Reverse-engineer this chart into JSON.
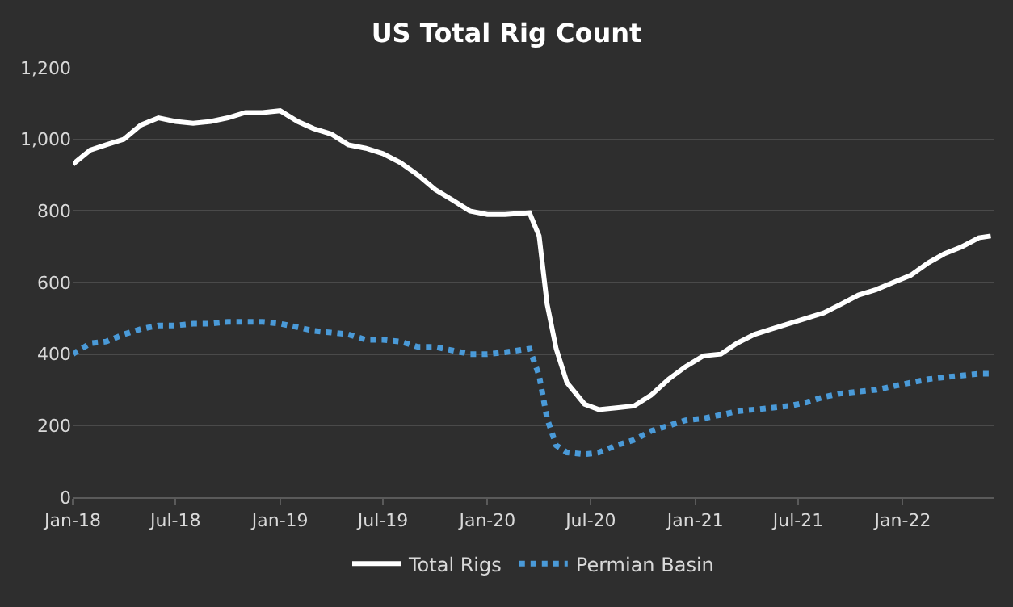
{
  "chart_data": {
    "type": "line",
    "title": "US Total Rig Count",
    "x": [
      "2018-01-01",
      "2018-02-01",
      "2018-03-01",
      "2018-04-01",
      "2018-05-01",
      "2018-06-01",
      "2018-07-01",
      "2018-08-01",
      "2018-09-01",
      "2018-10-01",
      "2018-11-01",
      "2018-12-01",
      "2019-01-01",
      "2019-02-01",
      "2019-03-01",
      "2019-04-01",
      "2019-05-01",
      "2019-06-01",
      "2019-07-01",
      "2019-08-01",
      "2019-09-01",
      "2019-10-01",
      "2019-11-01",
      "2019-12-01",
      "2020-01-01",
      "2020-02-01",
      "2020-03-15",
      "2020-04-01",
      "2020-04-15",
      "2020-05-01",
      "2020-05-20",
      "2020-06-20",
      "2020-07-15",
      "2020-08-15",
      "2020-09-15",
      "2020-10-15",
      "2020-11-15",
      "2020-12-15",
      "2021-01-15",
      "2021-02-15",
      "2021-03-15",
      "2021-04-15",
      "2021-05-15",
      "2021-06-15",
      "2021-07-15",
      "2021-08-15",
      "2021-09-15",
      "2021-10-15",
      "2021-11-15",
      "2021-12-15",
      "2022-01-15",
      "2022-02-15",
      "2022-03-15",
      "2022-04-15",
      "2022-05-15",
      "2022-06-05"
    ],
    "series": [
      {
        "name": "Total Rigs",
        "color": "#ffffff",
        "line_style": "solid",
        "values": [
          930,
          970,
          985,
          1000,
          1040,
          1060,
          1050,
          1045,
          1050,
          1060,
          1075,
          1075,
          1080,
          1050,
          1030,
          1015,
          985,
          975,
          960,
          935,
          900,
          860,
          830,
          800,
          790,
          790,
          795,
          730,
          540,
          415,
          320,
          260,
          245,
          250,
          255,
          285,
          330,
          365,
          395,
          400,
          430,
          455,
          470,
          485,
          500,
          515,
          540,
          565,
          580,
          600,
          620,
          655,
          680,
          700,
          725,
          730
        ]
      },
      {
        "name": "Permian Basin",
        "color": "#4a9ad8",
        "line_style": "dotted",
        "values": [
          400,
          430,
          435,
          455,
          470,
          480,
          480,
          485,
          485,
          490,
          490,
          490,
          485,
          475,
          465,
          460,
          455,
          440,
          440,
          435,
          420,
          420,
          410,
          400,
          400,
          405,
          415,
          340,
          220,
          145,
          125,
          120,
          125,
          145,
          160,
          185,
          200,
          215,
          220,
          230,
          240,
          245,
          250,
          255,
          265,
          280,
          290,
          295,
          300,
          310,
          320,
          330,
          335,
          340,
          345,
          345
        ]
      }
    ],
    "xlim": [
      "2018-01-01",
      "2022-06-10"
    ],
    "xticks": [
      {
        "value": "2018-01-01",
        "label": "Jan-18"
      },
      {
        "value": "2018-07-01",
        "label": "Jul-18"
      },
      {
        "value": "2019-01-01",
        "label": "Jan-19"
      },
      {
        "value": "2019-07-01",
        "label": "Jul-19"
      },
      {
        "value": "2020-01-01",
        "label": "Jan-20"
      },
      {
        "value": "2020-07-01",
        "label": "Jul-20"
      },
      {
        "value": "2021-01-01",
        "label": "Jan-21"
      },
      {
        "value": "2021-07-01",
        "label": "Jul-21"
      },
      {
        "value": "2022-01-01",
        "label": "Jan-22"
      }
    ],
    "ylim": [
      0,
      1200
    ],
    "yticks": [
      {
        "value": 0,
        "label": "0"
      },
      {
        "value": 200,
        "label": "200"
      },
      {
        "value": 400,
        "label": "400"
      },
      {
        "value": 600,
        "label": "600"
      },
      {
        "value": 800,
        "label": "800"
      },
      {
        "value": 1000,
        "label": "1,000"
      },
      {
        "value": 1200,
        "label": "1,200"
      }
    ],
    "grid": "y",
    "legend": "bottom",
    "marker": "none"
  }
}
